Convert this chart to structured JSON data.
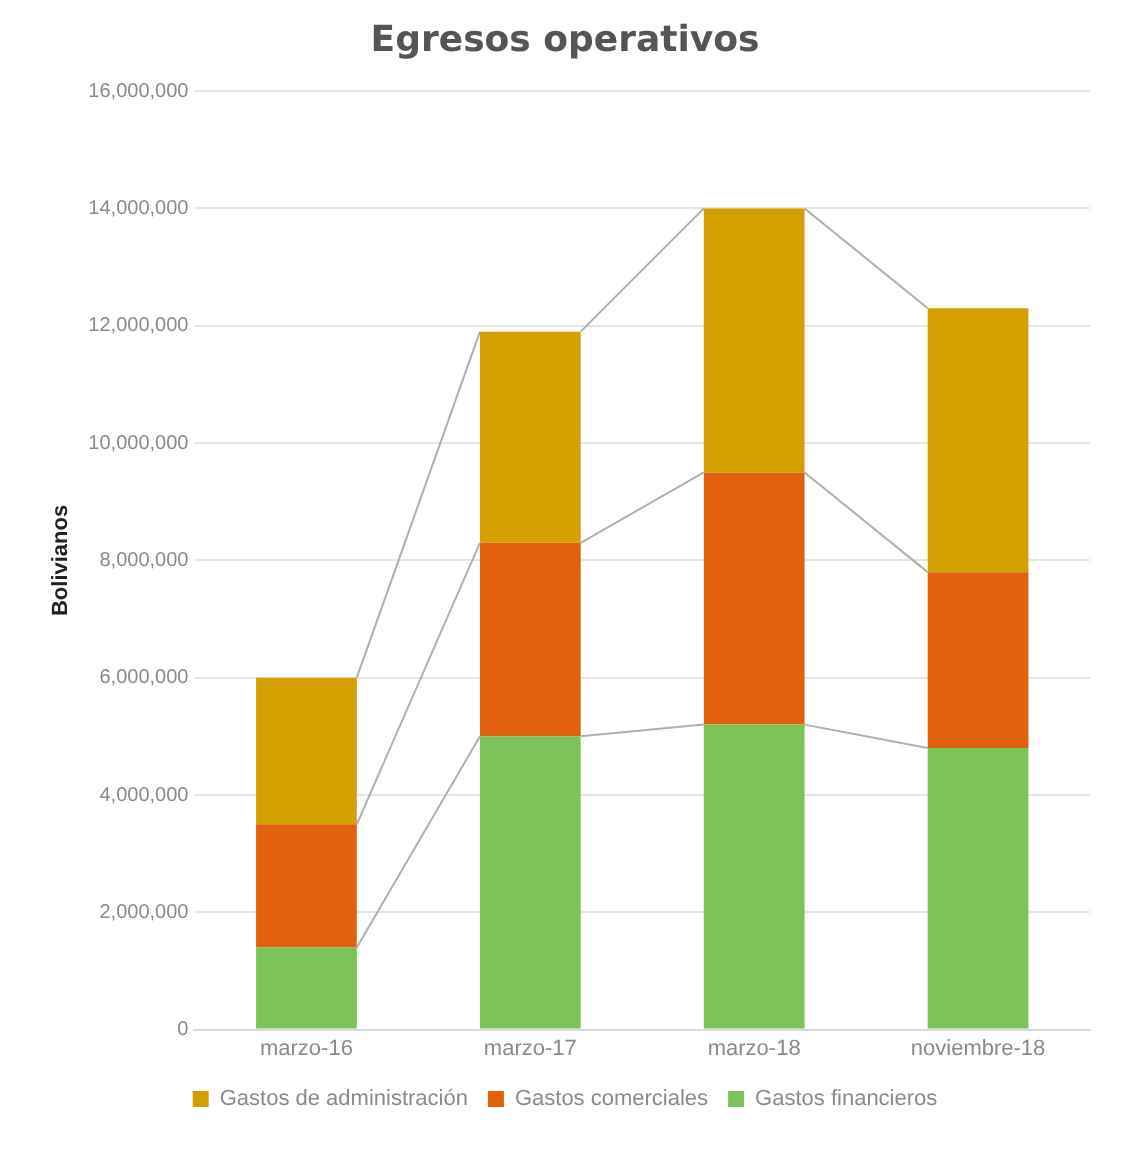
{
  "chart_data": {
    "type": "bar",
    "title": "Egresos operativos",
    "ylabel": "Bolivianos",
    "categories": [
      "marzo-16",
      "marzo-17",
      "marzo-18",
      "noviembre-18"
    ],
    "stacked": true,
    "series": [
      {
        "name": "Gastos financieros",
        "color": "#7cc35a",
        "values": [
          1400000,
          5000000,
          5200000,
          4800000
        ]
      },
      {
        "name": "Gastos comerciales",
        "color": "#e0620f",
        "values": [
          2100000,
          3300000,
          4300000,
          3000000
        ]
      },
      {
        "name": "Gastos de administración",
        "color": "#d4a000",
        "values": [
          2500000,
          3600000,
          4500000,
          4500000
        ]
      }
    ],
    "ylim": [
      0,
      16000000
    ],
    "yticks": [
      {
        "value": 0,
        "label": "0"
      },
      {
        "value": 2000000,
        "label": "2,000,000"
      },
      {
        "value": 4000000,
        "label": "4,000,000"
      },
      {
        "value": 6000000,
        "label": "6,000,000"
      },
      {
        "value": 8000000,
        "label": "8,000,000"
      },
      {
        "value": 10000000,
        "label": "10,000,000"
      },
      {
        "value": 12000000,
        "label": "12,000,000"
      },
      {
        "value": 14000000,
        "label": "14,000,000"
      },
      {
        "value": 16000000,
        "label": "16,000,000"
      }
    ],
    "grid": "y",
    "legend": "bottom"
  }
}
